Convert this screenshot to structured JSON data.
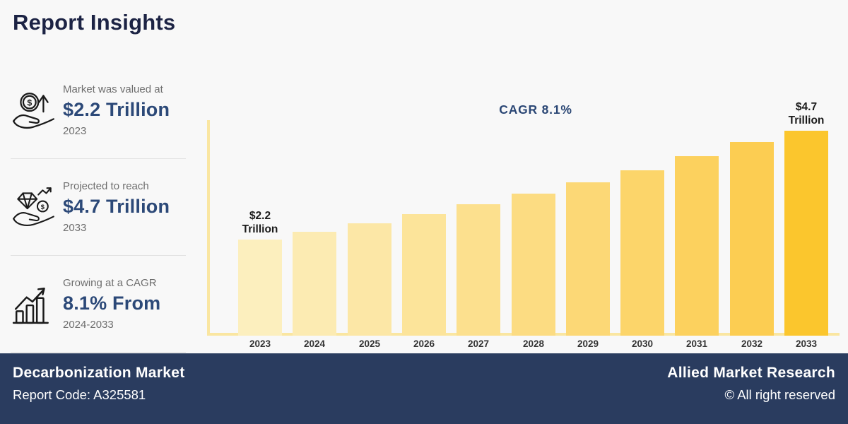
{
  "page": {
    "title": "Report Insights"
  },
  "stats": [
    {
      "icon": "money-growth-icon",
      "label": "Market was valued at",
      "value": "$2.2 Trillion",
      "period": "2023"
    },
    {
      "icon": "investment-hand-icon",
      "label": "Projected to reach",
      "value": "$4.7 Trillion",
      "period": "2033"
    },
    {
      "icon": "growth-bars-icon",
      "label": "Growing at a CAGR",
      "value": "8.1% From",
      "period": "2024-2033"
    }
  ],
  "chart_data": {
    "type": "bar",
    "title": "CAGR 8.1%",
    "categories": [
      "2023",
      "2024",
      "2025",
      "2026",
      "2027",
      "2028",
      "2029",
      "2030",
      "2031",
      "2032",
      "2033"
    ],
    "values": [
      2.2,
      2.38,
      2.57,
      2.78,
      3.01,
      3.25,
      3.51,
      3.8,
      4.11,
      4.44,
      4.7
    ],
    "unit": "Trillion USD",
    "xlabel": "",
    "ylabel": "",
    "ylim": [
      0,
      4.95
    ],
    "grid": false,
    "legend": "none",
    "annotations": [
      {
        "category": "2023",
        "lines": [
          "$2.2",
          "Trillion"
        ]
      },
      {
        "category": "2033",
        "lines": [
          "$4.7",
          "Trillion"
        ]
      }
    ],
    "bar_colors": [
      "#FCEFBE",
      "#FCEBB2",
      "#FCE7A6",
      "#FCE49A",
      "#FCE08E",
      "#FCDC82",
      "#FCD876",
      "#FCD56A",
      "#FCD15E",
      "#FCCD52",
      "#FBC62D"
    ],
    "axis_color": "#FAE6A1"
  },
  "footer": {
    "market_name": "Decarbonization Market",
    "report_code": "Report Code: A325581",
    "brand": "Allied Market Research",
    "copyright": "© All right reserved"
  },
  "colors": {
    "background": "#F8F8F8",
    "title_navy": "#1C2344",
    "value_navy": "#2C4978",
    "chart_title_navy": "#2B4775",
    "text_gray": "#6E6E6E",
    "footer_bg": "#2A3C5F",
    "annotation_black": "#1B1B1B"
  }
}
